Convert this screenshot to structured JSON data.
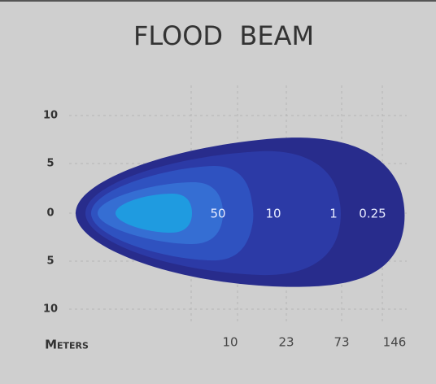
{
  "title": "FLOOD  BEAM",
  "y_axis": {
    "labels": [
      "10",
      "5",
      "0",
      "5",
      "10"
    ]
  },
  "x_axis": {
    "label": "Meters",
    "labels": [
      "10",
      "23",
      "73",
      "146"
    ]
  },
  "contours": {
    "labels": [
      "50",
      "10",
      "1",
      "0.25"
    ]
  }
}
